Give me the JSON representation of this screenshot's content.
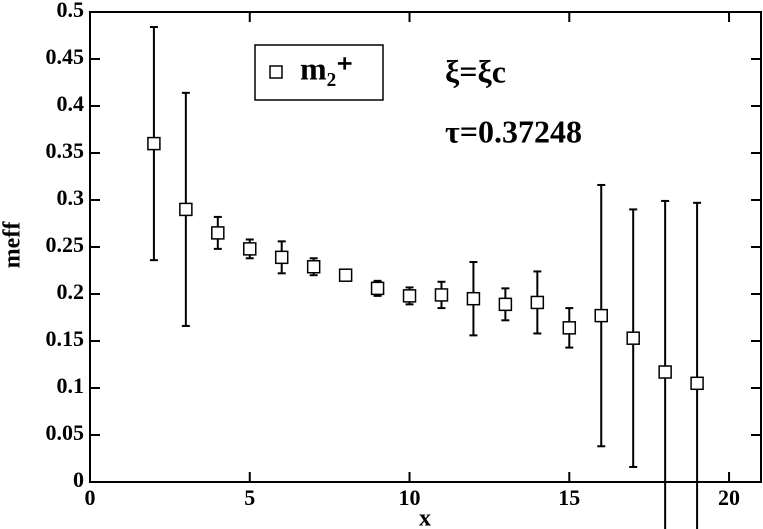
{
  "chart_data": {
    "type": "scatter",
    "xlabel": "x",
    "ylabel": "meff",
    "annotations": [
      "ξ=ξc",
      "τ=0.37248"
    ],
    "series": [
      {
        "name": "m₂⁺",
        "color": "#000000",
        "x": [
          2,
          3,
          4,
          5,
          6,
          7,
          8,
          9,
          10,
          11,
          12,
          13,
          14,
          15,
          16,
          17,
          18,
          19
        ],
        "values": [
          0.36,
          0.29,
          0.265,
          0.248,
          0.239,
          0.229,
          0.22,
          0.206,
          0.198,
          0.199,
          0.195,
          0.189,
          0.191,
          0.164,
          0.177,
          0.153,
          0.117,
          0.105
        ],
        "errors": [
          0.124,
          0.124,
          0.017,
          0.01,
          0.017,
          0.009,
          0.005,
          0.008,
          0.009,
          0.014,
          0.039,
          0.017,
          0.033,
          0.021,
          0.139,
          0.137,
          0.182,
          0.192
        ]
      }
    ],
    "xlim": [
      0,
      21
    ],
    "xticks": [
      0,
      5,
      10,
      15,
      20
    ],
    "ylim": [
      0,
      0.5
    ],
    "yticks": [
      0,
      0.05,
      0.1,
      0.15,
      0.2,
      0.25,
      0.3,
      0.35,
      0.4,
      0.45,
      0.5
    ],
    "grid": false
  }
}
